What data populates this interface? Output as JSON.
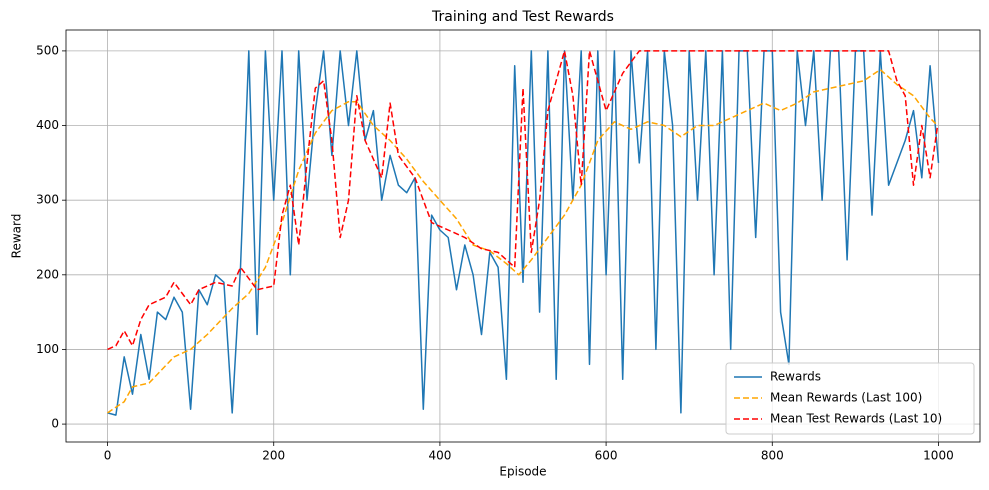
{
  "chart_data": {
    "type": "line",
    "title": "Training and Test Rewards",
    "x_label": "Episode",
    "y_label": "Reward",
    "xlim": [
      -50,
      1050
    ],
    "ylim": [
      -24,
      528
    ],
    "xticks": [
      0,
      200,
      400,
      600,
      800,
      1000
    ],
    "yticks": [
      0,
      100,
      200,
      300,
      400,
      500
    ],
    "grid": true,
    "legend": "lower right",
    "series": [
      {
        "name": "Rewards",
        "color": "#1f77b4",
        "linestyle": "solid",
        "x": [
          0,
          10,
          20,
          30,
          40,
          50,
          60,
          70,
          80,
          90,
          100,
          110,
          120,
          130,
          140,
          150,
          160,
          170,
          180,
          190,
          200,
          210,
          220,
          230,
          240,
          250,
          260,
          270,
          280,
          290,
          300,
          310,
          320,
          330,
          340,
          350,
          360,
          370,
          380,
          390,
          400,
          410,
          420,
          430,
          440,
          450,
          460,
          470,
          480,
          490,
          500,
          510,
          520,
          530,
          540,
          550,
          560,
          570,
          580,
          590,
          600,
          610,
          620,
          630,
          640,
          650,
          660,
          670,
          680,
          690,
          700,
          710,
          720,
          730,
          740,
          750,
          760,
          770,
          780,
          790,
          800,
          810,
          820,
          830,
          840,
          850,
          860,
          870,
          880,
          890,
          900,
          910,
          920,
          930,
          940,
          950,
          960,
          970,
          980,
          990,
          1000
        ],
        "values": [
          15,
          12,
          90,
          40,
          120,
          60,
          150,
          140,
          170,
          150,
          20,
          180,
          160,
          200,
          190,
          15,
          210,
          500,
          120,
          500,
          300,
          500,
          200,
          500,
          300,
          420,
          500,
          360,
          500,
          400,
          500,
          380,
          420,
          300,
          360,
          320,
          310,
          330,
          20,
          280,
          260,
          250,
          180,
          240,
          200,
          120,
          230,
          210,
          60,
          480,
          190,
          500,
          150,
          500,
          60,
          500,
          300,
          500,
          80,
          500,
          200,
          500,
          60,
          500,
          350,
          500,
          100,
          500,
          400,
          15,
          500,
          300,
          500,
          200,
          500,
          100,
          500,
          500,
          250,
          500,
          500,
          150,
          80,
          500,
          400,
          500,
          300,
          500,
          500,
          220,
          500,
          500,
          280,
          500,
          320,
          350,
          380,
          420,
          330,
          480,
          350
        ]
      },
      {
        "name": "Mean Rewards (Last 100)",
        "color": "#ffa500",
        "linestyle": "dashed",
        "x": [
          0,
          20,
          30,
          50,
          80,
          100,
          120,
          150,
          170,
          190,
          210,
          230,
          250,
          270,
          290,
          300,
          320,
          340,
          360,
          380,
          400,
          420,
          440,
          460,
          480,
          495,
          510,
          530,
          550,
          570,
          590,
          610,
          630,
          650,
          670,
          690,
          710,
          730,
          750,
          770,
          790,
          810,
          830,
          850,
          870,
          890,
          910,
          930,
          950,
          970,
          990,
          999
        ],
        "values": [
          15,
          30,
          50,
          55,
          90,
          100,
          120,
          155,
          175,
          210,
          270,
          340,
          390,
          420,
          432,
          432,
          400,
          380,
          355,
          325,
          300,
          275,
          240,
          232,
          215,
          200,
          220,
          250,
          280,
          320,
          380,
          405,
          395,
          405,
          400,
          385,
          400,
          400,
          410,
          420,
          430,
          420,
          430,
          445,
          450,
          455,
          460,
          475,
          455,
          440,
          410,
          400
        ]
      },
      {
        "name": "Mean Test Rewards (Last 10)",
        "color": "#ff0000",
        "linestyle": "dashed",
        "x": [
          0,
          10,
          20,
          30,
          40,
          50,
          70,
          80,
          90,
          100,
          110,
          130,
          150,
          160,
          180,
          200,
          210,
          220,
          230,
          240,
          250,
          260,
          270,
          280,
          290,
          300,
          310,
          330,
          340,
          350,
          370,
          390,
          410,
          430,
          450,
          470,
          490,
          500,
          510,
          520,
          530,
          540,
          550,
          560,
          570,
          580,
          590,
          600,
          620,
          640,
          700,
          800,
          900,
          940,
          950,
          960,
          970,
          980,
          990,
          999
        ],
        "values": [
          100,
          105,
          125,
          105,
          140,
          160,
          170,
          190,
          175,
          160,
          180,
          190,
          185,
          210,
          180,
          185,
          280,
          320,
          240,
          350,
          450,
          460,
          380,
          250,
          300,
          440,
          380,
          330,
          430,
          360,
          330,
          270,
          260,
          250,
          235,
          230,
          210,
          450,
          230,
          300,
          420,
          460,
          500,
          440,
          320,
          500,
          460,
          420,
          470,
          500,
          500,
          500,
          500,
          500,
          460,
          440,
          320,
          400,
          330,
          400
        ]
      }
    ]
  }
}
